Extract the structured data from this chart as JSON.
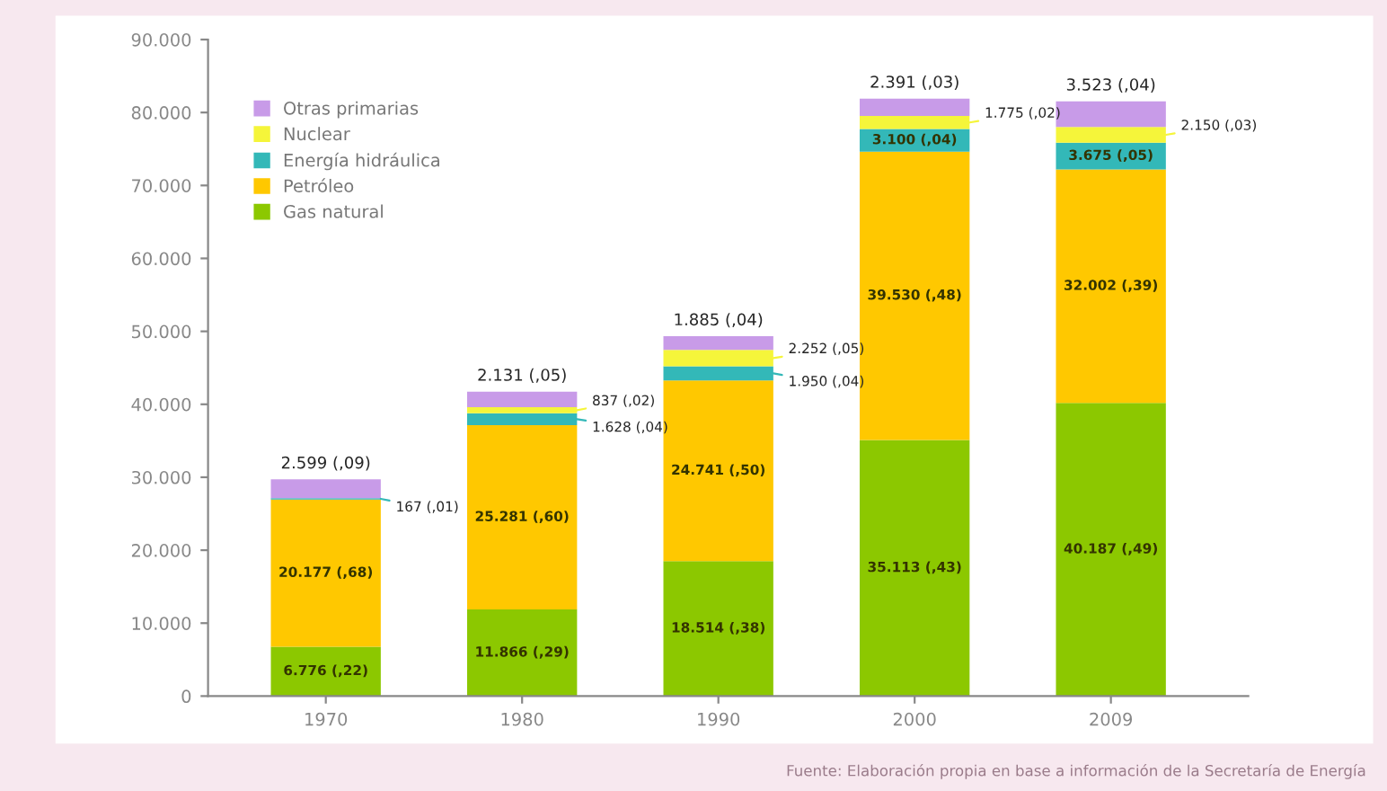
{
  "chart_data": {
    "type": "bar",
    "stacked": true,
    "categories": [
      "1970",
      "1980",
      "1990",
      "2000",
      "2009"
    ],
    "series": [
      {
        "name": "Gas natural",
        "color": "#8cc800",
        "values": [
          6776,
          11866,
          18514,
          35113,
          40187
        ],
        "value_labels": [
          "6.776 (,22)",
          "11.866 (,29)",
          "18.514 (,38)",
          "35.113 (,43)",
          "40.187 (,49)"
        ]
      },
      {
        "name": "Petróleo",
        "color": "#ffc800",
        "values": [
          20177,
          25281,
          24741,
          39530,
          32002
        ],
        "value_labels": [
          "20.177 (,68)",
          "25.281 (,60)",
          "24.741 (,50)",
          "39.530 (,48)",
          "32.002 (,39)"
        ]
      },
      {
        "name": "Energía hidráulica",
        "color": "#33b8b8",
        "values": [
          167,
          1628,
          1950,
          3100,
          3675
        ],
        "value_labels": [
          "167 (,01)",
          "1.628 (,04)",
          "1.950 (,04)",
          "3.100 (,04)",
          "3.675 (,05)"
        ]
      },
      {
        "name": "Nuclear",
        "color": "#f5f53a",
        "values": [
          0,
          837,
          2252,
          1775,
          2150
        ],
        "value_labels": [
          null,
          "837 (,02)",
          "2.252 (,05)",
          "1.775 (,02)",
          "2.150 (,03)"
        ]
      },
      {
        "name": "Otras primarias",
        "color": "#c89be8",
        "values": [
          2599,
          2131,
          1885,
          2391,
          3523
        ],
        "value_labels": [
          "2.599 (,09)",
          "2.131 (,05)",
          "1.885 (,04)",
          "2.391 (,03)",
          "3.523 (,04)"
        ]
      }
    ],
    "ylim": [
      0,
      90000
    ],
    "yticks": [
      {
        "value": 0,
        "label": "0"
      },
      {
        "value": 10000,
        "label": "10.000"
      },
      {
        "value": 20000,
        "label": "20.000"
      },
      {
        "value": 30000,
        "label": "30.000"
      },
      {
        "value": 40000,
        "label": "40.000"
      },
      {
        "value": 50000,
        "label": "50.000"
      },
      {
        "value": 60000,
        "label": "60.000"
      },
      {
        "value": 70000,
        "label": "70.000"
      },
      {
        "value": 80000,
        "label": "80.000"
      },
      {
        "value": 90000,
        "label": "90.000"
      }
    ],
    "grid": false,
    "legend": "top left",
    "annotations": [
      "Fuente: Elaboración propia en base a información de la Secretaría de Energía"
    ]
  }
}
